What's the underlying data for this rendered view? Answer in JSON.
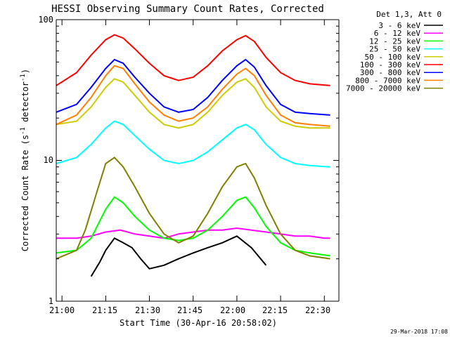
{
  "chart_data": {
    "type": "line",
    "title": "HESSI Observing Summary Count Rates, Corrected",
    "xlabel": "Start Time (30-Apr-16 20:58:02)",
    "ylabel": "Corrected Count Rate (s",
    "ylabel_sup1": "-1",
    "ylabel_mid": " detector",
    "ylabel_sup2": "-1",
    "ylabel_end": ")",
    "y_scale": "log",
    "ylim": [
      1,
      100
    ],
    "xlim": [
      "20:58:02",
      "22:35:00"
    ],
    "x_ticks": [
      "21:00",
      "21:15",
      "21:30",
      "21:45",
      "22:00",
      "22:15",
      "22:30"
    ],
    "y_tick_labels": [
      "1",
      "10",
      "100"
    ],
    "legend_title": "Det 1,3, Att 0",
    "legend_placement": "outside-right",
    "footer": "29-Mar-2018 17:08",
    "series": [
      {
        "name": "3 - 6 keV",
        "color": "#000000",
        "x": [
          "21:10",
          "21:13",
          "21:15",
          "21:18",
          "21:21",
          "21:24",
          "21:27",
          "21:30",
          "21:35",
          "21:40",
          "21:45",
          "21:50",
          "21:55",
          "22:00",
          "22:05",
          "22:10"
        ],
        "y": [
          1.5,
          1.9,
          2.3,
          2.8,
          2.6,
          2.4,
          2.0,
          1.7,
          1.8,
          2.0,
          2.2,
          2.4,
          2.6,
          2.9,
          2.4,
          1.8
        ]
      },
      {
        "name": "6 - 12 keV",
        "color": "#ff00ff",
        "x": [
          "20:58:02",
          "21:05",
          "21:10",
          "21:15",
          "21:20",
          "21:25",
          "21:30",
          "21:35",
          "21:40",
          "21:45",
          "21:50",
          "21:55",
          "22:00",
          "22:05",
          "22:10",
          "22:15",
          "22:20",
          "22:25",
          "22:30",
          "22:32"
        ],
        "y": [
          2.8,
          2.8,
          2.9,
          3.1,
          3.2,
          3.0,
          2.9,
          2.8,
          3.0,
          3.1,
          3.2,
          3.2,
          3.3,
          3.2,
          3.1,
          3.0,
          2.9,
          2.9,
          2.8,
          2.8
        ]
      },
      {
        "name": "12 - 25 keV",
        "color": "#00ff00",
        "x": [
          "20:58:02",
          "21:05",
          "21:10",
          "21:15",
          "21:18",
          "21:21",
          "21:25",
          "21:30",
          "21:35",
          "21:40",
          "21:45",
          "21:50",
          "21:55",
          "22:00",
          "22:03",
          "22:06",
          "22:10",
          "22:15",
          "22:20",
          "22:25",
          "22:32"
        ],
        "y": [
          2.2,
          2.3,
          2.8,
          4.5,
          5.5,
          5.0,
          4.0,
          3.2,
          2.8,
          2.7,
          2.8,
          3.2,
          4.0,
          5.2,
          5.5,
          4.6,
          3.4,
          2.6,
          2.3,
          2.2,
          2.1
        ]
      },
      {
        "name": "25 - 50 keV",
        "color": "#00ffff",
        "x": [
          "20:58:02",
          "21:05",
          "21:10",
          "21:15",
          "21:18",
          "21:21",
          "21:25",
          "21:30",
          "21:35",
          "21:40",
          "21:45",
          "21:50",
          "21:55",
          "22:00",
          "22:03",
          "22:06",
          "22:10",
          "22:15",
          "22:20",
          "22:25",
          "22:32"
        ],
        "y": [
          9.5,
          10.5,
          13,
          17,
          19,
          18,
          15,
          12,
          10,
          9.5,
          10,
          11.5,
          14,
          17,
          18,
          16.5,
          13,
          10.5,
          9.5,
          9.2,
          9.0
        ]
      },
      {
        "name": "50 - 100 keV",
        "color": "#cccc00",
        "x": [
          "20:58:02",
          "21:05",
          "21:10",
          "21:15",
          "21:18",
          "21:21",
          "21:25",
          "21:30",
          "21:35",
          "21:40",
          "21:45",
          "21:50",
          "21:55",
          "22:00",
          "22:03",
          "22:06",
          "22:10",
          "22:15",
          "22:20",
          "22:25",
          "22:32"
        ],
        "y": [
          18,
          19,
          24,
          33,
          38,
          36,
          29,
          22,
          18,
          17,
          18,
          22,
          29,
          36,
          38,
          33,
          24,
          19,
          17.5,
          17,
          17
        ]
      },
      {
        "name": "100 - 300 keV",
        "color": "#ff0000",
        "x": [
          "20:58:02",
          "21:05",
          "21:10",
          "21:15",
          "21:18",
          "21:21",
          "21:25",
          "21:30",
          "21:35",
          "21:40",
          "21:45",
          "21:50",
          "21:55",
          "22:00",
          "22:03",
          "22:06",
          "22:10",
          "22:15",
          "22:20",
          "22:25",
          "22:32"
        ],
        "y": [
          34,
          42,
          56,
          72,
          78,
          74,
          62,
          49,
          40,
          37,
          39,
          47,
          60,
          72,
          77,
          70,
          54,
          42,
          37,
          35,
          34
        ]
      },
      {
        "name": "300 - 800 keV",
        "color": "#0000ff",
        "x": [
          "20:58:02",
          "21:05",
          "21:10",
          "21:15",
          "21:18",
          "21:21",
          "21:25",
          "21:30",
          "21:35",
          "21:40",
          "21:45",
          "21:50",
          "21:55",
          "22:00",
          "22:03",
          "22:06",
          "22:10",
          "22:15",
          "22:20",
          "22:25",
          "22:32"
        ],
        "y": [
          22,
          25,
          33,
          45,
          52,
          49,
          39,
          30,
          24,
          22,
          23,
          28,
          37,
          47,
          52,
          46,
          34,
          25,
          22,
          21.5,
          21
        ]
      },
      {
        "name": "800 - 7000 keV",
        "color": "#ff8000",
        "x": [
          "20:58:02",
          "21:05",
          "21:10",
          "21:15",
          "21:18",
          "21:21",
          "21:25",
          "21:30",
          "21:35",
          "21:40",
          "21:45",
          "21:50",
          "21:55",
          "22:00",
          "22:03",
          "22:06",
          "22:10",
          "22:15",
          "22:20",
          "22:25",
          "22:32"
        ],
        "y": [
          18,
          21,
          28,
          40,
          47,
          45,
          35,
          26,
          21,
          19,
          20,
          24,
          32,
          41,
          45,
          40,
          29,
          21,
          18.5,
          18,
          17.5
        ]
      },
      {
        "name": "7000 - 20000 keV",
        "color": "#808000",
        "x": [
          "20:58:02",
          "21:05",
          "21:08",
          "21:12",
          "21:15",
          "21:18",
          "21:21",
          "21:25",
          "21:30",
          "21:35",
          "21:40",
          "21:45",
          "21:50",
          "21:55",
          "22:00",
          "22:03",
          "22:06",
          "22:10",
          "22:15",
          "22:20",
          "22:25",
          "22:32"
        ],
        "y": [
          2.0,
          2.3,
          3.2,
          6.0,
          9.5,
          10.5,
          9.0,
          6.5,
          4.2,
          3.0,
          2.6,
          2.9,
          4.2,
          6.5,
          9.0,
          9.5,
          7.5,
          4.8,
          3.0,
          2.3,
          2.1,
          2.0
        ]
      }
    ]
  }
}
